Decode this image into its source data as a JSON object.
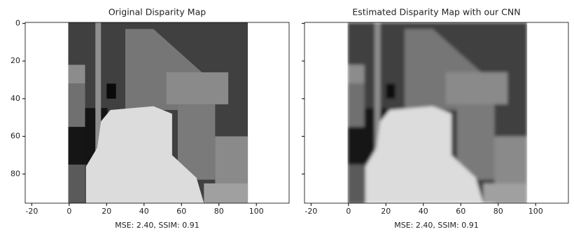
{
  "chart_data": [
    {
      "type": "image",
      "title": "Original Disparity Map",
      "xlabel": "MSE: 2.40, SSIM: 0.91",
      "xlim": [
        -23.5,
        117.5
      ],
      "ylim": [
        95.5,
        -0.5
      ],
      "xticks": [
        -20,
        0,
        20,
        40,
        60,
        80,
        100
      ],
      "yticks": [
        0,
        20,
        40,
        60,
        80
      ],
      "show_yticklabels": true,
      "blur": false
    },
    {
      "type": "image",
      "title": "Estimated Disparity Map with our CNN",
      "xlabel": "MSE: 2.40, SSIM: 0.91",
      "xlim": [
        -23.5,
        117.5
      ],
      "ylim": [
        95.5,
        -0.5
      ],
      "xticks": [
        -20,
        0,
        20,
        40,
        60,
        80,
        100
      ],
      "yticks": [
        0,
        20,
        40,
        60,
        80
      ],
      "show_yticklabels": false,
      "blur": true
    }
  ]
}
